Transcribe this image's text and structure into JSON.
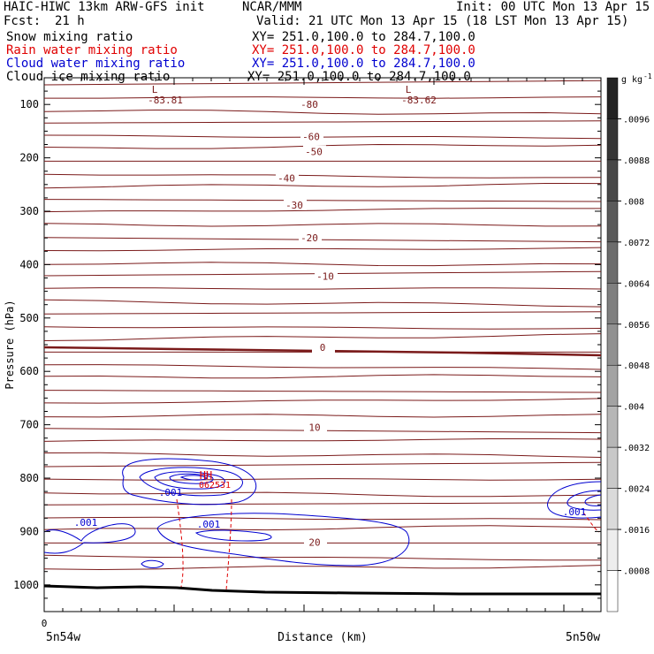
{
  "header": {
    "model": "HAIC-HIWC 13km ARW-GFS init",
    "center": "NCAR/MMM",
    "init": "Init: 00 UTC Mon 13 Apr 15",
    "fcst_label": "Fcst:",
    "fcst_value": "21 h",
    "valid": "Valid: 21 UTC Mon 13 Apr 15 (18 LST Mon 13 Apr 15)"
  },
  "fields": [
    {
      "name": "Snow mixing ratio",
      "xy": "XY= 251.0,100.0 to 284.7,100.0",
      "color": "#000000"
    },
    {
      "name": "Rain water mixing ratio",
      "xy": "XY= 251.0,100.0 to 284.7,100.0",
      "color": "#e00000"
    },
    {
      "name": "Cloud water mixing ratio",
      "xy": "XY= 251.0,100.0 to 284.7,100.0",
      "color": "#0000d0"
    },
    {
      "name": "Cloud ice mixing ratio",
      "xy": "XY= 251.0,100.0 to 284.7,100.0",
      "color": "#000000"
    }
  ],
  "chart_data": {
    "type": "contour",
    "ylabel": "Pressure (hPa)",
    "xlabel": "Distance (km)",
    "y_ticks": [
      100,
      200,
      300,
      400,
      500,
      600,
      700,
      800,
      900,
      1000
    ],
    "ylim": [
      1050,
      50
    ],
    "x_origin_label": "0",
    "x_left_label": "5n54w",
    "x_right_label": "5n50w",
    "temperature_labels": [
      "-80",
      "-60",
      "-50",
      "-40",
      "-30",
      "-20",
      "-10",
      "0",
      "10",
      "20"
    ],
    "temperature_label_pressure": [
      100,
      160,
      188,
      238,
      288,
      350,
      422,
      555,
      705,
      920
    ],
    "temperature_lows": [
      {
        "mark": "L",
        "value": "-83.81"
      },
      {
        "mark": "L",
        "value": "-83.62"
      }
    ],
    "cloud_water_labels": [
      ".001",
      ".001",
      ".001",
      ".001"
    ],
    "rain_high": "HH",
    "rain_max_value": "062531",
    "colorbar": {
      "unit": "g kg",
      "unit_exponent": "-1",
      "levels": [
        ".0096",
        ".0088",
        ".008",
        ".0072",
        ".0064",
        ".0056",
        ".0048",
        ".004",
        ".0032",
        ".0024",
        ".0016",
        ".0008"
      ]
    },
    "colors": {
      "temperature": "#7a1a1a",
      "cloud_water": "#0000d0",
      "rain": "#e00000",
      "ground": "#000000"
    }
  }
}
